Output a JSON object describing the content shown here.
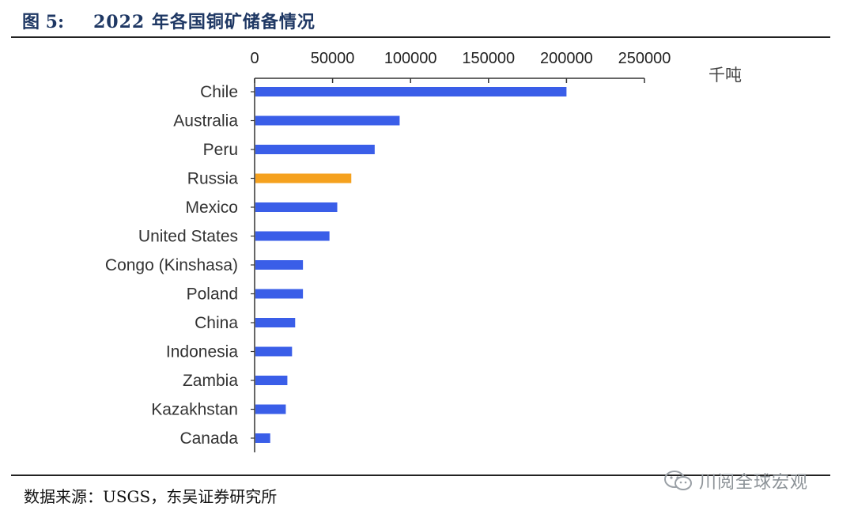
{
  "figure": {
    "label": "图 5:",
    "title": "2022 年各国铜矿储备情况",
    "source": "数据来源：USGS，东吴证券研究所",
    "watermark": "川阅全球宏观"
  },
  "colors": {
    "default_bar": "#3a5ee8",
    "highlight_bar": "#f5a11e",
    "header_text": "#1f3864"
  },
  "chart_data": {
    "type": "bar",
    "orientation": "horizontal",
    "unit": "千吨",
    "categories": [
      "Chile",
      "Australia",
      "Peru",
      "Russia",
      "Mexico",
      "United States",
      "Congo (Kinshasa)",
      "Poland",
      "China",
      "Indonesia",
      "Zambia",
      "Kazakhstan",
      "Canada"
    ],
    "values": [
      200000,
      93000,
      77000,
      62000,
      53000,
      48000,
      31000,
      31000,
      26000,
      24000,
      21000,
      20000,
      10000
    ],
    "highlight": "Russia",
    "xlim": [
      0,
      250000
    ],
    "xticks": [
      0,
      50000,
      100000,
      150000,
      200000,
      250000
    ],
    "xaxis_position": "top",
    "grid": false,
    "legend": "none"
  }
}
